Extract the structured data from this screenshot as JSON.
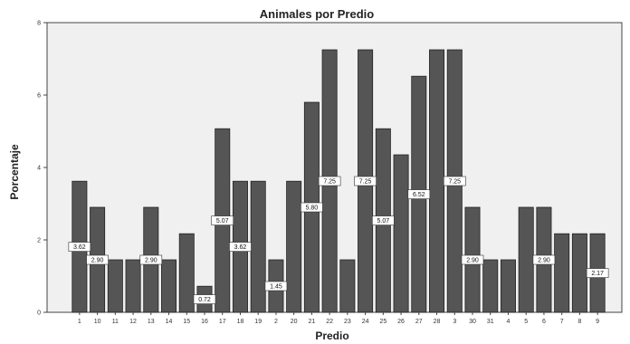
{
  "chart_data": {
    "type": "bar",
    "title": "Animales por Predio",
    "xlabel": "Predio",
    "ylabel": "Porcentaje",
    "ylim": [
      0,
      8
    ],
    "yticks": [
      "0",
      "2",
      "4",
      "6",
      "8"
    ],
    "grid": false,
    "colors": {
      "plot_bg": "#f0f0f0",
      "bar": "#555555",
      "bar_edge": "#222222"
    },
    "categories": [
      "1",
      "10",
      "11",
      "12",
      "13",
      "14",
      "15",
      "16",
      "17",
      "18",
      "19",
      "2",
      "20",
      "21",
      "22",
      "23",
      "24",
      "25",
      "26",
      "27",
      "28",
      "3",
      "30",
      "31",
      "4",
      "5",
      "6",
      "7",
      "8",
      "9"
    ],
    "values": [
      3.62,
      2.9,
      1.45,
      1.45,
      2.9,
      1.45,
      2.17,
      0.72,
      5.07,
      3.62,
      3.62,
      1.45,
      3.62,
      5.8,
      7.25,
      1.45,
      7.25,
      5.07,
      4.35,
      6.52,
      7.25,
      7.25,
      2.9,
      1.45,
      1.45,
      2.9,
      2.9,
      2.17,
      2.17,
      2.17
    ],
    "data_labels": [
      "3.62",
      "2.90",
      "",
      "",
      "2.90",
      "",
      "",
      "0.72",
      "5.07",
      "3.62",
      "",
      "1.45",
      "",
      "5.80",
      "7.25",
      "",
      "7.25",
      "5.07",
      "",
      "6.52",
      "",
      "7.25",
      "2.90",
      "",
      "",
      "",
      "2.90",
      "",
      "",
      "2.17"
    ]
  }
}
